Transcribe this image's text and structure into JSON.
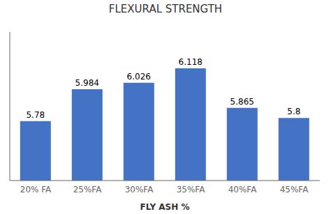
{
  "chart_data": {
    "type": "bar",
    "title": "FLEXURAL STRENGTH",
    "xlabel": "FLY ASH %",
    "categories": [
      "20% FA",
      "25%FA",
      "30%FA",
      "35%FA",
      "40%FA",
      "45%FA"
    ],
    "values": [
      5.78,
      5.984,
      6.026,
      6.118,
      5.865,
      5.8
    ],
    "color": "#4472C4",
    "ylim": [
      5.4,
      6.35
    ],
    "data_labels": true,
    "tick_labels": "x"
  }
}
